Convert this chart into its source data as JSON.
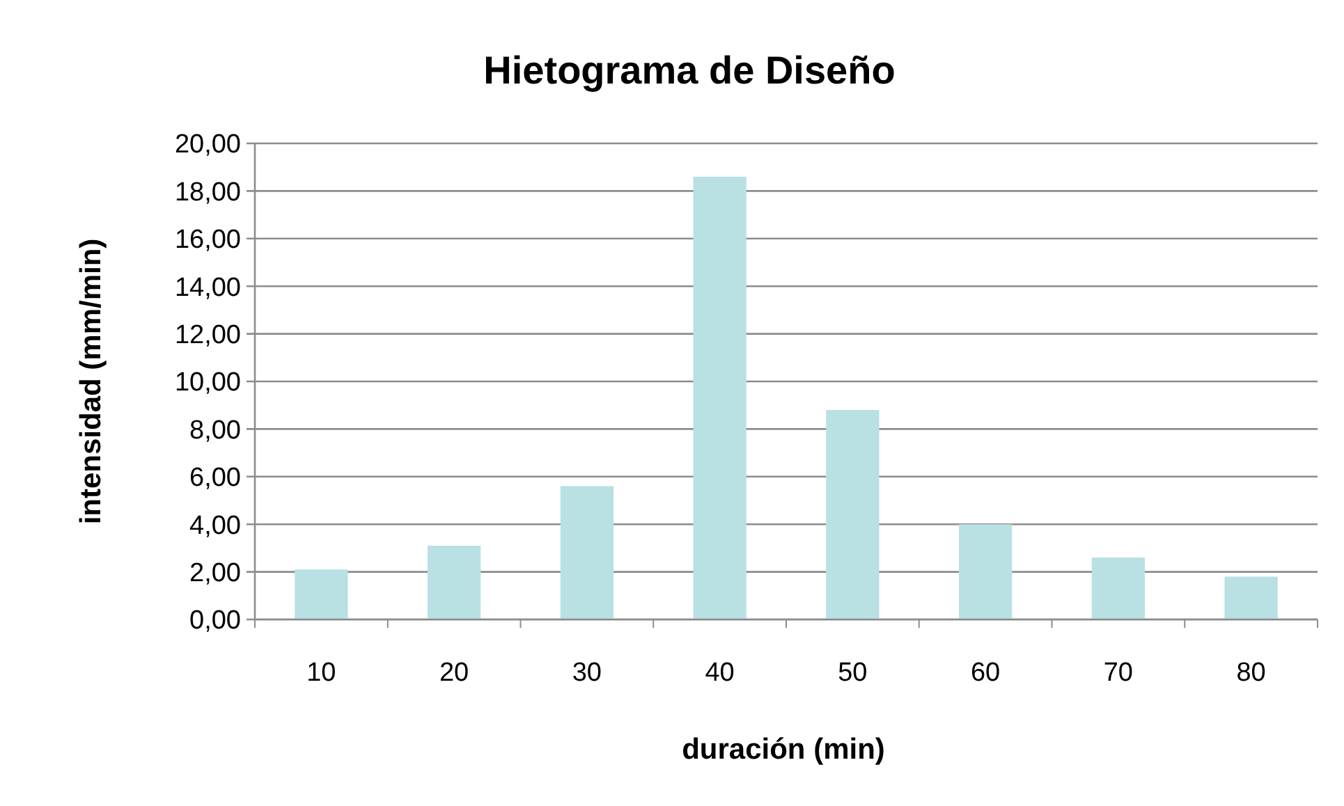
{
  "chart_data": {
    "type": "bar",
    "title": "Hietograma de Diseño",
    "xlabel": "duración (min)",
    "ylabel": "intensidad (mm/min)",
    "categories": [
      "10",
      "20",
      "30",
      "40",
      "50",
      "60",
      "70",
      "80"
    ],
    "values": [
      2.1,
      3.1,
      5.6,
      18.6,
      8.8,
      4.0,
      2.6,
      1.8
    ],
    "color": "#b9e0e3",
    "ylim": [
      0,
      20
    ],
    "yticks": [
      {
        "value": 0,
        "label": "0,00"
      },
      {
        "value": 2,
        "label": "2,00"
      },
      {
        "value": 4,
        "label": "4,00"
      },
      {
        "value": 6,
        "label": "6,00"
      },
      {
        "value": 8,
        "label": "8,00"
      },
      {
        "value": 10,
        "label": "10,00"
      },
      {
        "value": 12,
        "label": "12,00"
      },
      {
        "value": 14,
        "label": "14,00"
      },
      {
        "value": 16,
        "label": "16,00"
      },
      {
        "value": 18,
        "label": "18,00"
      },
      {
        "value": 20,
        "label": "20,00"
      }
    ],
    "grid": "y"
  }
}
